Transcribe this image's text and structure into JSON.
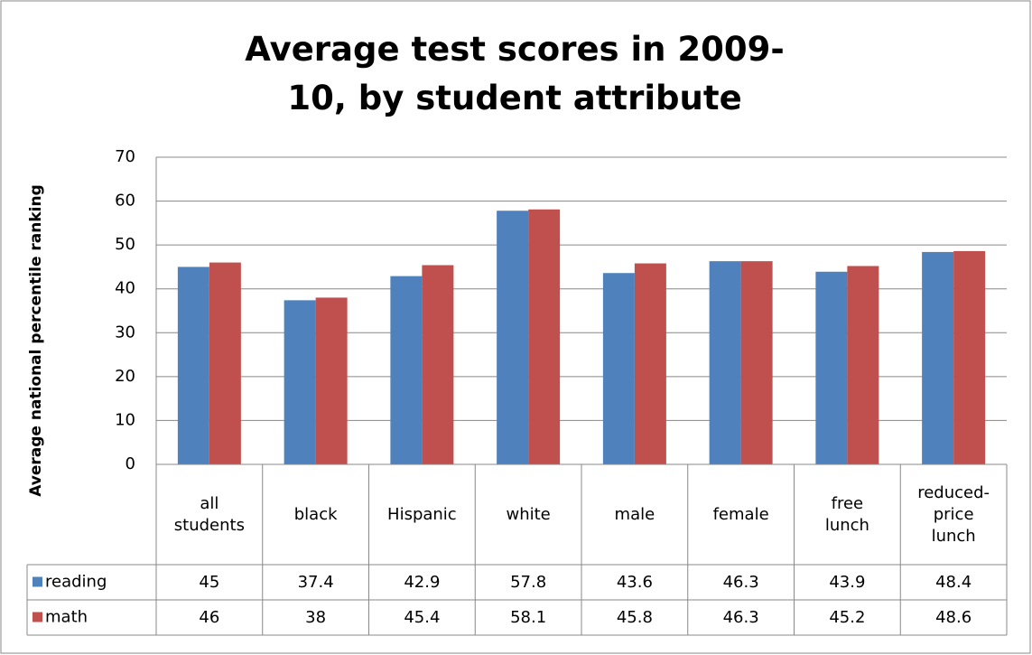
{
  "chart_data": {
    "type": "bar",
    "title": "Average test scores in 2009-10, by student attribute",
    "y_label": "Average national percentile ranking",
    "categories": [
      "all students",
      "black",
      "Hispanic",
      "white",
      "male",
      "female",
      "free lunch",
      "reduced-price lunch"
    ],
    "series": [
      {
        "name": "reading",
        "color": "#4f81bd",
        "values": [
          45,
          37.4,
          42.9,
          57.8,
          43.6,
          46.3,
          43.9,
          48.4
        ]
      },
      {
        "name": "math",
        "color": "#c0504d",
        "values": [
          46,
          38,
          45.4,
          58.1,
          45.8,
          46.3,
          45.2,
          48.6
        ]
      }
    ],
    "ylim": [
      0,
      70
    ],
    "yticks": [
      0,
      10,
      20,
      30,
      40,
      50,
      60,
      70
    ],
    "grid": true,
    "data_table": true
  }
}
